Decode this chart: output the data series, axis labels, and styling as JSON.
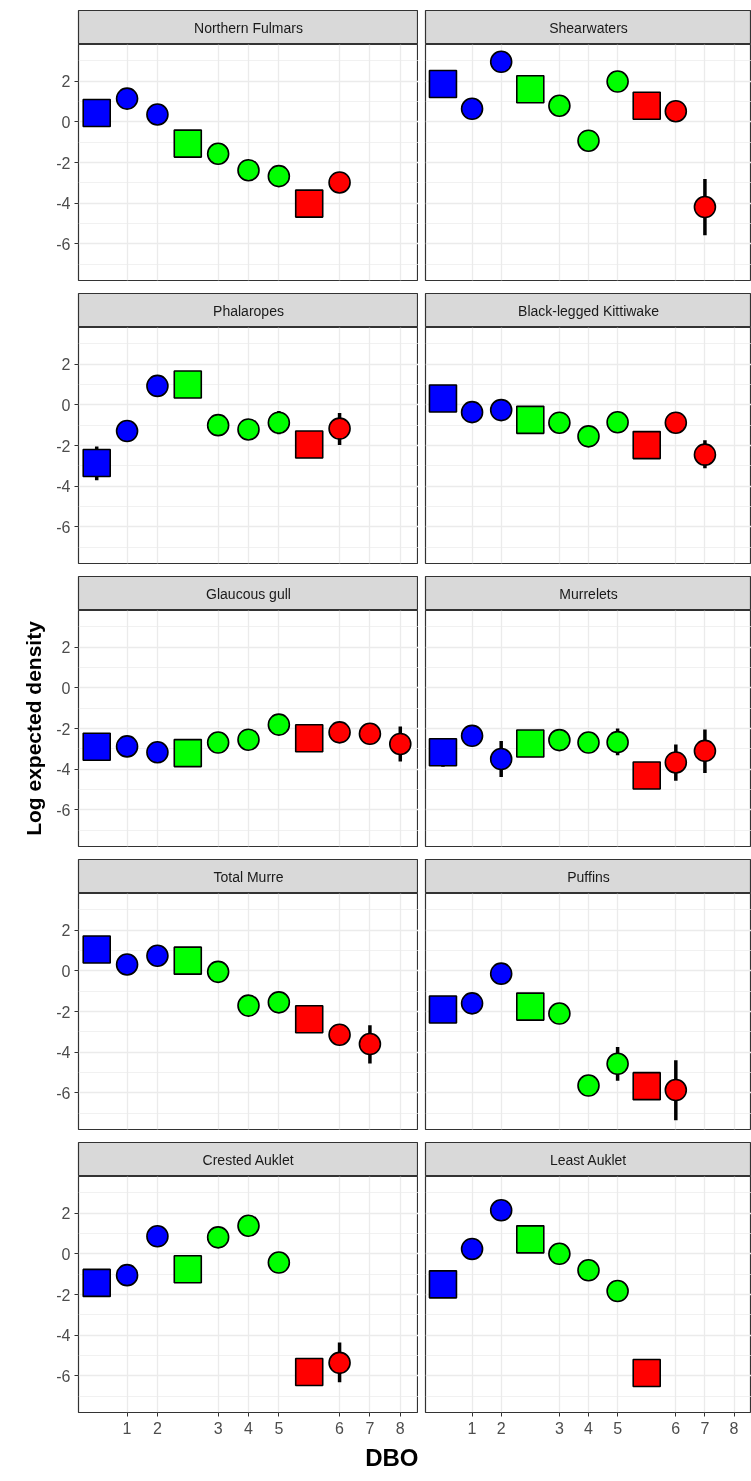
{
  "chart_data": [
    {
      "type": "scatter",
      "title": "Northern Fulmars",
      "tick_labels": "y",
      "grid": true,
      "categories": [
        null,
        "1",
        "2",
        null,
        "3",
        "4",
        "5",
        null,
        "6",
        "7",
        "8"
      ],
      "ylim": [
        -7.8,
        3.8
      ],
      "yticks": [
        -6,
        -4,
        -2,
        0,
        2
      ],
      "series": [
        {
          "marker": "square",
          "values": [
            0.43,
            null,
            null,
            -1.07,
            null,
            null,
            null,
            -4.02,
            null,
            null,
            null
          ],
          "colors": [
            "#0000ff",
            null,
            null,
            "#00ff00",
            null,
            null,
            null,
            "#ff0000",
            null,
            null,
            null
          ]
        },
        {
          "marker": "circle",
          "values": [
            null,
            1.14,
            0.36,
            null,
            -1.57,
            -2.38,
            -2.67,
            null,
            -2.98,
            null,
            null
          ],
          "colors": [
            null,
            "#0000ff",
            "#0000ff",
            null,
            "#00ff00",
            "#00ff00",
            "#00ff00",
            null,
            "#ff0000",
            null,
            null
          ]
        }
      ]
    },
    {
      "type": "scatter",
      "title": "Shearwaters",
      "tick_labels": false,
      "grid": true,
      "categories": [
        null,
        "1",
        "2",
        null,
        "3",
        "4",
        "5",
        null,
        "6",
        "7",
        "8"
      ],
      "ylim": [
        -7.8,
        3.8
      ],
      "yticks": [
        -6,
        -4,
        -2,
        0,
        2
      ],
      "series": [
        {
          "marker": "square",
          "values": [
            1.86,
            null,
            null,
            1.6,
            null,
            null,
            null,
            0.79,
            null,
            null,
            null
          ],
          "colors": [
            "#0000ff",
            null,
            null,
            "#00ff00",
            null,
            null,
            null,
            "#ff0000",
            null,
            null,
            null
          ]
        },
        {
          "marker": "circle",
          "values": [
            null,
            0.64,
            2.95,
            null,
            0.79,
            -0.93,
            1.98,
            null,
            0.52,
            -4.19,
            null
          ],
          "colors": [
            null,
            "#0000ff",
            "#0000ff",
            null,
            "#00ff00",
            "#00ff00",
            "#00ff00",
            null,
            "#ff0000",
            "#ff0000",
            null
          ],
          "errors": [
            null,
            null,
            null,
            null,
            null,
            null,
            null,
            null,
            null,
            [
              -5.57,
              -2.81
            ],
            null
          ]
        }
      ]
    },
    {
      "type": "scatter",
      "title": "Phalaropes",
      "tick_labels": "y",
      "grid": true,
      "categories": [
        null,
        "1",
        "2",
        null,
        "3",
        "4",
        "5",
        null,
        "6",
        "7",
        "8"
      ],
      "ylim": [
        -7.8,
        3.8
      ],
      "yticks": [
        -6,
        -4,
        -2,
        0,
        2
      ],
      "series": [
        {
          "marker": "square",
          "values": [
            -2.86,
            null,
            null,
            1.0,
            null,
            null,
            null,
            -1.95,
            null,
            null,
            null
          ],
          "colors": [
            "#0000ff",
            null,
            null,
            "#00ff00",
            null,
            null,
            null,
            "#ff0000",
            null,
            null,
            null
          ],
          "errors": [
            [
              -3.71,
              -2.05
            ],
            null,
            null,
            null,
            null,
            null,
            null,
            null,
            null,
            null,
            null
          ]
        },
        {
          "marker": "circle",
          "values": [
            null,
            -1.29,
            0.93,
            null,
            -1.0,
            -1.21,
            -0.88,
            null,
            -1.17,
            null,
            null
          ],
          "colors": [
            null,
            "#0000ff",
            "#0000ff",
            null,
            "#00ff00",
            "#00ff00",
            "#00ff00",
            null,
            "#ff0000",
            null,
            null
          ],
          "errors": [
            null,
            null,
            null,
            null,
            null,
            null,
            [
              -1.45,
              -0.31
            ],
            null,
            [
              -1.98,
              -0.4
            ],
            null,
            null
          ]
        }
      ]
    },
    {
      "type": "scatter",
      "title": "Black-legged Kittiwake",
      "tick_labels": false,
      "grid": true,
      "categories": [
        null,
        "1",
        "2",
        null,
        "3",
        "4",
        "5",
        null,
        "6",
        "7",
        "8"
      ],
      "ylim": [
        -7.8,
        3.8
      ],
      "yticks": [
        -6,
        -4,
        -2,
        0,
        2
      ],
      "series": [
        {
          "marker": "square",
          "values": [
            0.31,
            null,
            null,
            -0.74,
            null,
            null,
            null,
            -1.98,
            null,
            null,
            null
          ],
          "colors": [
            "#0000ff",
            null,
            null,
            "#00ff00",
            null,
            null,
            null,
            "#ff0000",
            null,
            null,
            null
          ]
        },
        {
          "marker": "circle",
          "values": [
            null,
            -0.36,
            -0.26,
            null,
            -0.88,
            -1.55,
            -0.86,
            null,
            -0.88,
            -2.45,
            null
          ],
          "colors": [
            null,
            "#0000ff",
            "#0000ff",
            null,
            "#00ff00",
            "#00ff00",
            "#00ff00",
            null,
            "#ff0000",
            "#ff0000",
            null
          ],
          "errors": [
            null,
            null,
            null,
            null,
            null,
            null,
            null,
            null,
            null,
            [
              -3.12,
              -1.74
            ],
            null
          ]
        }
      ]
    },
    {
      "type": "scatter",
      "title": "Glaucous gull",
      "ylabel": "Log expected density",
      "tick_labels": "y",
      "grid": true,
      "categories": [
        null,
        "1",
        "2",
        null,
        "3",
        "4",
        "5",
        null,
        "6",
        "7",
        "8"
      ],
      "ylim": [
        -7.8,
        3.8
      ],
      "yticks": [
        -6,
        -4,
        -2,
        0,
        2
      ],
      "series": [
        {
          "marker": "square",
          "values": [
            -2.9,
            null,
            null,
            -3.21,
            null,
            null,
            null,
            -2.48,
            null,
            null,
            null
          ],
          "colors": [
            "#0000ff",
            null,
            null,
            "#00ff00",
            null,
            null,
            null,
            "#ff0000",
            null,
            null,
            null
          ]
        },
        {
          "marker": "circle",
          "values": [
            null,
            -2.88,
            -3.17,
            null,
            -2.69,
            -2.55,
            -1.81,
            null,
            -2.19,
            -2.26,
            -2.76
          ],
          "colors": [
            null,
            "#0000ff",
            "#0000ff",
            null,
            "#00ff00",
            "#00ff00",
            "#00ff00",
            null,
            "#ff0000",
            "#ff0000",
            "#ff0000"
          ],
          "errors": [
            null,
            null,
            null,
            null,
            null,
            null,
            null,
            null,
            null,
            [
              -2.74,
              -1.95
            ],
            [
              -3.62,
              -1.9
            ]
          ]
        }
      ]
    },
    {
      "type": "scatter",
      "title": "Murrelets",
      "tick_labels": false,
      "grid": true,
      "categories": [
        null,
        "1",
        "2",
        null,
        "3",
        "4",
        "5",
        null,
        "6",
        "7",
        "8"
      ],
      "ylim": [
        -7.8,
        3.8
      ],
      "yticks": [
        -6,
        -4,
        -2,
        0,
        2
      ],
      "series": [
        {
          "marker": "square",
          "values": [
            -3.17,
            null,
            null,
            -2.74,
            null,
            null,
            null,
            -4.31,
            null,
            null,
            null
          ],
          "colors": [
            "#0000ff",
            null,
            null,
            "#00ff00",
            null,
            null,
            null,
            "#ff0000",
            null,
            null,
            null
          ],
          "errors": [
            [
              -3.88,
              -2.5
            ],
            null,
            null,
            null,
            null,
            null,
            null,
            null,
            null,
            null,
            null
          ]
        },
        {
          "marker": "circle",
          "values": [
            null,
            -2.36,
            -3.5,
            null,
            -2.57,
            -2.69,
            -2.67,
            null,
            -3.67,
            -3.1,
            null
          ],
          "colors": [
            null,
            "#0000ff",
            "#0000ff",
            null,
            "#00ff00",
            "#00ff00",
            "#00ff00",
            null,
            "#ff0000",
            "#ff0000",
            null
          ],
          "errors": [
            null,
            null,
            [
              -4.38,
              -2.62
            ],
            null,
            null,
            null,
            [
              -3.31,
              -2.0
            ],
            null,
            [
              -4.57,
              -2.79
            ],
            [
              -4.19,
              -2.05
            ],
            null
          ]
        }
      ]
    },
    {
      "type": "scatter",
      "title": "Total Murre",
      "tick_labels": "y",
      "grid": true,
      "categories": [
        null,
        "1",
        "2",
        null,
        "3",
        "4",
        "5",
        null,
        "6",
        "7",
        "8"
      ],
      "ylim": [
        -7.8,
        3.8
      ],
      "yticks": [
        -6,
        -4,
        -2,
        0,
        2
      ],
      "series": [
        {
          "marker": "square",
          "values": [
            1.05,
            null,
            null,
            0.5,
            null,
            null,
            null,
            -2.38,
            null,
            null,
            null
          ],
          "colors": [
            "#0000ff",
            null,
            null,
            "#00ff00",
            null,
            null,
            null,
            "#ff0000",
            null,
            null,
            null
          ]
        },
        {
          "marker": "circle",
          "values": [
            null,
            0.31,
            0.74,
            null,
            -0.05,
            -1.71,
            -1.55,
            null,
            -3.14,
            -3.6,
            null
          ],
          "colors": [
            null,
            "#0000ff",
            "#0000ff",
            null,
            "#00ff00",
            "#00ff00",
            "#00ff00",
            null,
            "#ff0000",
            "#ff0000",
            null
          ],
          "errors": [
            null,
            null,
            null,
            null,
            null,
            null,
            null,
            null,
            null,
            [
              -4.55,
              -2.67
            ],
            null
          ]
        }
      ]
    },
    {
      "type": "scatter",
      "title": "Puffins",
      "tick_labels": false,
      "grid": true,
      "categories": [
        null,
        "1",
        "2",
        null,
        "3",
        "4",
        "5",
        null,
        "6",
        "7",
        "8"
      ],
      "ylim": [
        -7.8,
        3.8
      ],
      "yticks": [
        -6,
        -4,
        -2,
        0,
        2
      ],
      "series": [
        {
          "marker": "square",
          "values": [
            -1.9,
            null,
            null,
            -1.76,
            null,
            null,
            null,
            -5.67,
            null,
            null,
            null
          ],
          "colors": [
            "#0000ff",
            null,
            null,
            "#00ff00",
            null,
            null,
            null,
            "#ff0000",
            null,
            null,
            null
          ]
        },
        {
          "marker": "circle",
          "values": [
            null,
            -1.6,
            -0.14,
            null,
            -2.1,
            -5.64,
            -4.57,
            null,
            -5.86,
            null,
            null
          ],
          "colors": [
            null,
            "#0000ff",
            "#0000ff",
            null,
            "#00ff00",
            "#00ff00",
            "#00ff00",
            null,
            "#ff0000",
            null,
            null
          ],
          "errors": [
            null,
            null,
            null,
            null,
            null,
            null,
            [
              -5.4,
              -3.74
            ],
            null,
            [
              -7.35,
              -4.4
            ],
            null,
            null
          ]
        }
      ]
    },
    {
      "type": "scatter",
      "title": "Crested Auklet",
      "xlabel": "DBO",
      "grid": true,
      "categories": [
        null,
        "1",
        "2",
        null,
        "3",
        "4",
        "5",
        null,
        "6",
        "7",
        "8"
      ],
      "ylim": [
        -7.8,
        3.8
      ],
      "yticks": [
        -6,
        -4,
        -2,
        0,
        2
      ],
      "series": [
        {
          "marker": "square",
          "values": [
            -1.43,
            null,
            null,
            -0.76,
            null,
            null,
            null,
            -5.81,
            null,
            null,
            null
          ],
          "colors": [
            "#0000ff",
            null,
            null,
            "#00ff00",
            null,
            null,
            null,
            "#ff0000",
            null,
            null,
            null
          ]
        },
        {
          "marker": "circle",
          "values": [
            null,
            -1.05,
            0.86,
            null,
            0.81,
            1.38,
            -0.43,
            null,
            -5.36,
            null,
            null
          ],
          "colors": [
            null,
            "#0000ff",
            "#0000ff",
            null,
            "#00ff00",
            "#00ff00",
            "#00ff00",
            null,
            "#ff0000",
            null,
            null
          ],
          "errors": [
            null,
            null,
            null,
            null,
            null,
            null,
            null,
            null,
            [
              -6.31,
              -4.36
            ],
            null,
            null
          ]
        }
      ]
    },
    {
      "type": "scatter",
      "title": "Least Auklet",
      "tick_labels": "x",
      "grid": true,
      "categories": [
        null,
        "1",
        "2",
        null,
        "3",
        "4",
        "5",
        null,
        "6",
        "7",
        "8"
      ],
      "ylim": [
        -7.8,
        3.8
      ],
      "yticks": [
        -6,
        -4,
        -2,
        0,
        2
      ],
      "series": [
        {
          "marker": "square",
          "values": [
            -1.5,
            null,
            null,
            0.71,
            null,
            null,
            null,
            -5.86,
            null,
            null,
            null
          ],
          "colors": [
            "#0000ff",
            null,
            null,
            "#00ff00",
            null,
            null,
            null,
            "#ff0000",
            null,
            null,
            null
          ]
        },
        {
          "marker": "circle",
          "values": [
            null,
            0.24,
            2.14,
            null,
            0,
            -0.81,
            -1.83,
            null,
            null,
            null,
            null
          ],
          "colors": [
            null,
            "#0000ff",
            "#0000ff",
            null,
            "#00ff00",
            "#00ff00",
            "#00ff00",
            null,
            null,
            null,
            null
          ]
        }
      ]
    }
  ]
}
